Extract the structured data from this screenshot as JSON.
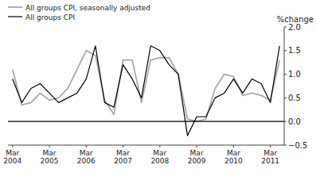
{
  "chart_data": {
    "type": "line",
    "ylabel": "%change",
    "categories": [
      "Mar\n2004",
      null,
      null,
      null,
      "Mar\n2005",
      null,
      null,
      null,
      "Mar\n2006",
      null,
      null,
      null,
      "Mar\n2007",
      null,
      null,
      null,
      "Mar\n2008",
      null,
      null,
      null,
      "Mar\n2009",
      null,
      null,
      null,
      "Mar\n2010",
      null,
      null,
      null,
      "Mar\n2011",
      null
    ],
    "series": [
      {
        "name": "All groups CPI, seasonally adjusted",
        "color": "#aaaaaa",
        "values": [
          1.1,
          0.35,
          0.4,
          0.6,
          0.45,
          0.5,
          0.7,
          1.1,
          1.5,
          1.4,
          0.45,
          0.15,
          1.3,
          1.3,
          0.4,
          1.3,
          1.35,
          1.35,
          1.0,
          0.05,
          0.0,
          0.05,
          0.7,
          1.0,
          0.95,
          0.55,
          0.6,
          0.55,
          0.45,
          1.3
        ]
      },
      {
        "name": "All groups CPI",
        "color": "#000000",
        "values": [
          0.9,
          0.4,
          0.7,
          0.8,
          0.6,
          0.4,
          0.5,
          0.6,
          0.9,
          1.6,
          0.4,
          0.3,
          1.2,
          0.9,
          0.5,
          1.6,
          1.5,
          1.2,
          1.0,
          -0.3,
          0.1,
          0.1,
          0.5,
          0.6,
          0.9,
          0.6,
          0.9,
          0.8,
          0.4,
          1.6
        ]
      }
    ],
    "ylim": [
      -0.5,
      2.0
    ],
    "yticks": [
      {
        "value": -0.5,
        "label": "−0.5"
      },
      {
        "value": 0.0,
        "label": "0.0"
      },
      0.5,
      {
        "value": 1.0,
        "label": "1.0"
      },
      1.5,
      {
        "value": 2.0,
        "label": "2.0"
      }
    ],
    "legend": "upper left",
    "grid": false
  }
}
